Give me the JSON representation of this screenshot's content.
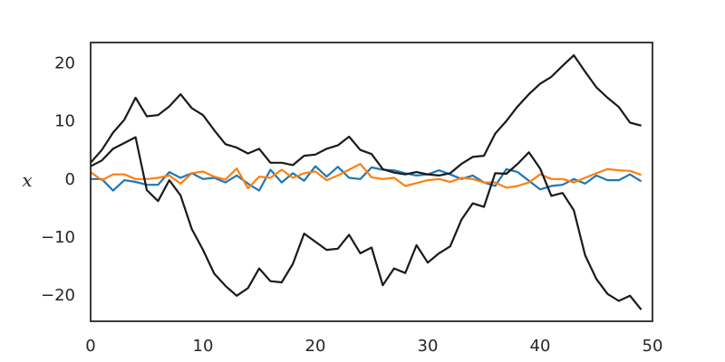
{
  "chart_data": {
    "type": "line",
    "xlabel": "",
    "ylabel": "x",
    "xlim": [
      0,
      50
    ],
    "ylim": [
      -24.5,
      23.5
    ],
    "xticks": [
      0,
      10,
      20,
      30,
      40,
      50
    ],
    "yticks": [
      -20,
      -10,
      0,
      10,
      20
    ],
    "ytick_labels": [
      "−20",
      "−10",
      "0",
      "10",
      "20"
    ],
    "grid": false,
    "legend": "none",
    "x": [
      0,
      1,
      2,
      3,
      4,
      5,
      6,
      7,
      8,
      9,
      10,
      11,
      12,
      13,
      14,
      15,
      16,
      17,
      18,
      19,
      20,
      21,
      22,
      23,
      24,
      25,
      26,
      27,
      28,
      29,
      30,
      31,
      32,
      33,
      34,
      35,
      36,
      37,
      38,
      39,
      40,
      41,
      42,
      43,
      44,
      45,
      46,
      47,
      48,
      49
    ],
    "series": [
      {
        "color": "#1f77b4",
        "values": [
          0.0,
          0.0,
          -2.0,
          -0.2,
          -0.5,
          -1.0,
          -1.0,
          1.2,
          0.2,
          1.0,
          0.0,
          0.2,
          -0.6,
          0.6,
          -0.8,
          -2.0,
          1.6,
          -0.6,
          1.0,
          -0.3,
          2.2,
          0.4,
          2.1,
          0.2,
          0.0,
          2.0,
          1.6,
          1.5,
          1.0,
          0.6,
          0.8,
          1.5,
          0.8,
          0.0,
          0.6,
          -0.6,
          -1.2,
          1.7,
          1.2,
          -0.3,
          -1.8,
          -1.2,
          -1.0,
          0.0,
          -0.8,
          0.6,
          -0.2,
          -0.2,
          0.8,
          -0.4
        ]
      },
      {
        "color": "#ff7f0e",
        "values": [
          1.2,
          -0.2,
          0.8,
          0.8,
          0.0,
          0.0,
          0.2,
          0.6,
          -0.8,
          1.0,
          1.3,
          0.4,
          -0.1,
          1.8,
          -1.6,
          0.4,
          0.2,
          1.6,
          0.2,
          1.0,
          1.3,
          -0.2,
          0.6,
          1.6,
          2.6,
          0.3,
          0.0,
          0.2,
          -1.2,
          -0.7,
          -0.2,
          0.0,
          -0.5,
          0.2,
          0.0,
          -0.6,
          -0.6,
          -1.5,
          -1.2,
          -0.6,
          0.8,
          0.0,
          0.0,
          -0.6,
          0.2,
          1.0,
          1.7,
          1.5,
          1.4,
          0.7
        ]
      },
      {
        "color": "#1a1a1a",
        "values": [
          2.8,
          5.0,
          8.0,
          10.2,
          14.0,
          10.8,
          11.0,
          12.5,
          14.6,
          12.2,
          11.0,
          8.4,
          6.0,
          5.4,
          4.4,
          5.2,
          2.8,
          2.8,
          2.4,
          4.0,
          4.2,
          5.2,
          5.8,
          7.3,
          5.0,
          4.3,
          1.7,
          1.1,
          0.8,
          1.2,
          0.8,
          0.6,
          1.0,
          2.6,
          3.8,
          4.0,
          7.8,
          10.0,
          12.5,
          14.6,
          16.4,
          17.6,
          19.5,
          21.3,
          18.5,
          15.8,
          14.0,
          12.4,
          9.7,
          9.2
        ]
      },
      {
        "color": "#1a1a1a",
        "values": [
          2.2,
          3.2,
          5.2,
          6.2,
          7.2,
          -1.9,
          -3.8,
          -0.2,
          -2.8,
          -8.6,
          -12.2,
          -16.3,
          -18.4,
          -20.1,
          -18.8,
          -15.4,
          -17.6,
          -17.8,
          -14.6,
          -9.4,
          -10.8,
          -12.2,
          -12.0,
          -9.6,
          -12.8,
          -11.8,
          -18.3,
          -15.4,
          -16.2,
          -11.4,
          -14.4,
          -12.8,
          -11.6,
          -7.0,
          -4.2,
          -4.8,
          1.0,
          0.9,
          2.6,
          4.6,
          1.8,
          -2.9,
          -2.4,
          -5.4,
          -13.1,
          -17.2,
          -19.8,
          -21.0,
          -20.1,
          -22.5
        ]
      }
    ]
  }
}
